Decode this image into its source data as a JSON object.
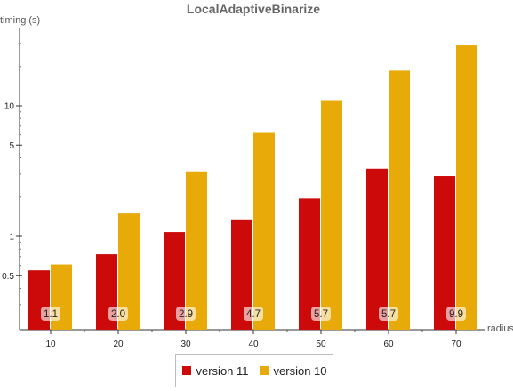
{
  "chart_data": {
    "type": "bar",
    "title": "LocalAdaptiveBinarize",
    "xlabel": "radius",
    "ylabel": "timing (s)",
    "yscale": "log",
    "ylim": [
      0.25,
      50
    ],
    "yticks": [
      {
        "value": 0.5,
        "label": "0.5"
      },
      {
        "value": 1,
        "label": "1"
      },
      {
        "value": 5,
        "label": "5"
      },
      {
        "value": 10,
        "label": "10"
      }
    ],
    "categories": [
      "10",
      "20",
      "30",
      "40",
      "50",
      "60",
      "70"
    ],
    "series": [
      {
        "name": "version 11",
        "color": "#cc0a0a",
        "values": [
          0.55,
          0.73,
          1.08,
          1.33,
          1.95,
          3.3,
          2.9
        ]
      },
      {
        "name": "version 10",
        "color": "#e8aa08",
        "values": [
          0.61,
          1.5,
          3.15,
          6.2,
          10.9,
          18.6,
          29.0
        ]
      }
    ],
    "bar_labels": [
      "1.1",
      "2.0",
      "2.9",
      "4.7",
      "5.7",
      "5.7",
      "9.9"
    ],
    "legend_position": "bottom",
    "grid": false
  }
}
